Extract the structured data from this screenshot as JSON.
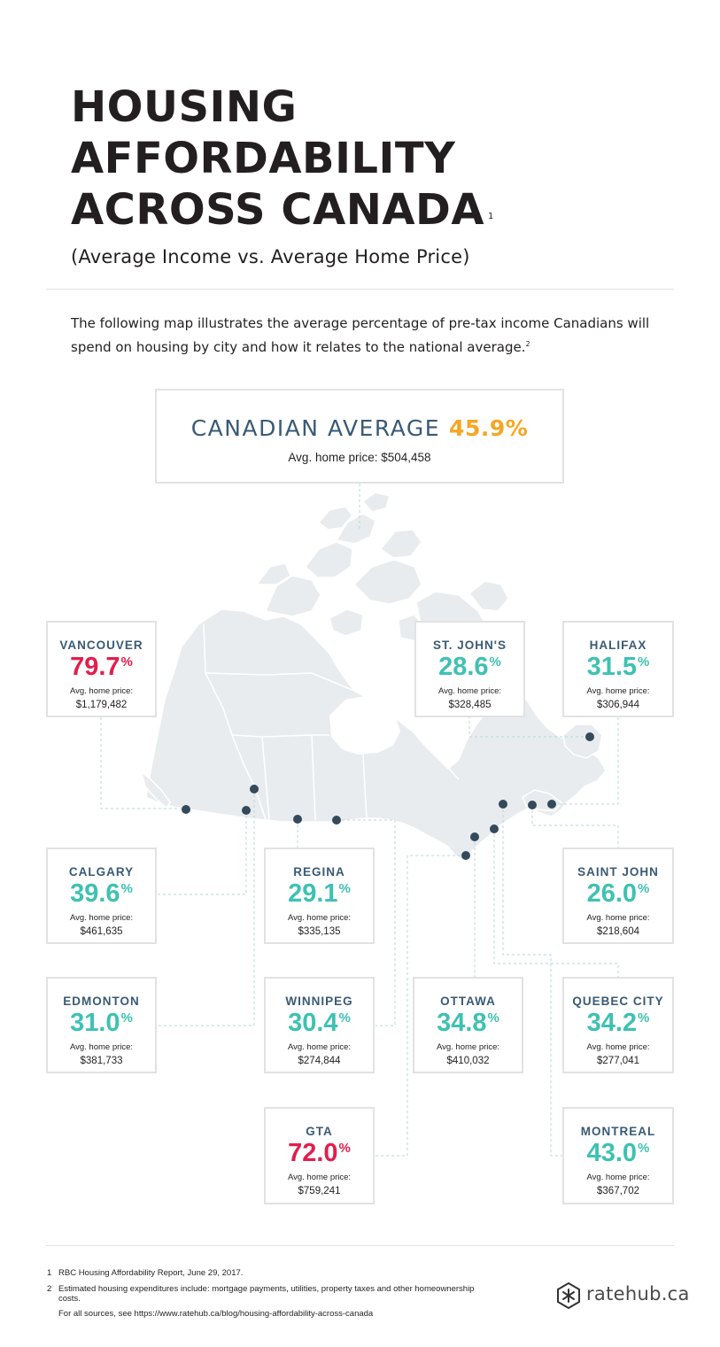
{
  "title": {
    "line1": "HOUSING",
    "line2": "AFFORDABILITY",
    "line3": "ACROSS CANADA",
    "note": "1"
  },
  "subtitle": "(Average Income vs. Average Home Price)",
  "intro": {
    "text": "The following map illustrates the average percentage of pre-tax income Canadians will spend on housing by city and how it relates to the national average.",
    "note": "2"
  },
  "average": {
    "label": "CANADIAN AVERAGE",
    "value": "45.9%",
    "price_label": "Avg. home price:",
    "price": "$504,458"
  },
  "percent_sign": "%",
  "price_label": "Avg. home price:",
  "cities": [
    {
      "name": "VANCOUVER",
      "pct": "79.7",
      "price": "$1,179,482",
      "level": "high"
    },
    {
      "name": "ST. JOHN'S",
      "pct": "28.6",
      "price": "$328,485",
      "level": "normal"
    },
    {
      "name": "HALIFAX",
      "pct": "31.5",
      "price": "$306,944",
      "level": "normal"
    },
    {
      "name": "CALGARY",
      "pct": "39.6",
      "price": "$461,635",
      "level": "normal"
    },
    {
      "name": "REGINA",
      "pct": "29.1",
      "price": "$335,135",
      "level": "normal"
    },
    {
      "name": "SAINT JOHN",
      "pct": "26.0",
      "price": "$218,604",
      "level": "normal"
    },
    {
      "name": "EDMONTON",
      "pct": "31.0",
      "price": "$381,733",
      "level": "normal"
    },
    {
      "name": "WINNIPEG",
      "pct": "30.4",
      "price": "$274,844",
      "level": "normal"
    },
    {
      "name": "OTTAWA",
      "pct": "34.8",
      "price": "$410,032",
      "level": "normal"
    },
    {
      "name": "QUEBEC CITY",
      "pct": "34.2",
      "price": "$277,041",
      "level": "normal"
    },
    {
      "name": "GTA",
      "pct": "72.0",
      "price": "$759,241",
      "level": "high"
    },
    {
      "name": "MONTREAL",
      "pct": "43.0",
      "price": "$367,702",
      "level": "normal"
    }
  ],
  "colors": {
    "normal": "#3ec1b3",
    "high": "#e21e4c",
    "average": "#f5a623",
    "label": "#3a5a75",
    "map": "#e8ecef",
    "dot": "#34495a"
  },
  "footnotes": [
    {
      "num": "1",
      "text": "RBC Housing Affordability Report, June 29, 2017."
    },
    {
      "num": "2",
      "text": "Estimated housing expenditures include: mortgage payments, utilities, property taxes and other homeownership costs."
    }
  ],
  "sources": "For all sources, see https://www.ratehub.ca/blog/housing-affordability-across-canada",
  "logo": {
    "text": "ratehub.ca",
    "icon": "asterisk-hex-icon"
  }
}
